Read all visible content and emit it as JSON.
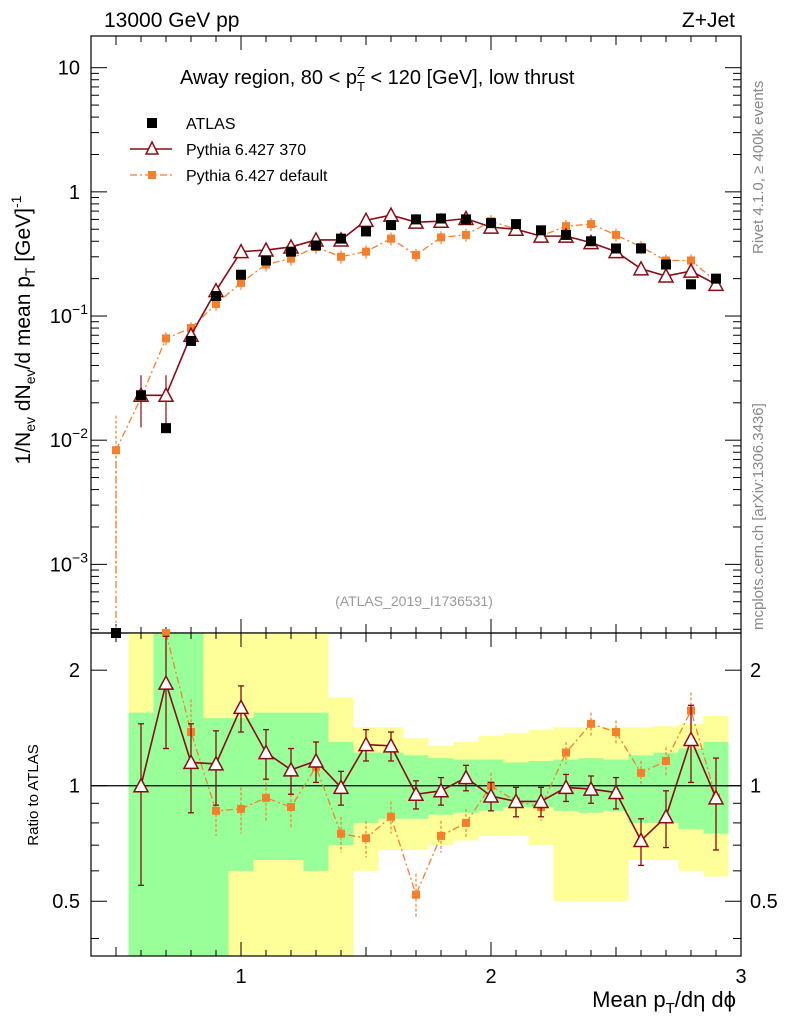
{
  "header": {
    "energy": "13000 GeV pp",
    "process": "Z+Jet"
  },
  "side_labels": {
    "rivet": "Rivet 4.1.0, ≥ 400k events",
    "mcplots": "mcplots.cern.ch [arXiv:1306.3436]"
  },
  "chart_data": [
    {
      "type": "scatter",
      "title": "Away region, 80 < pTZ < 120 [GeV], low thrust",
      "title_main": "Away region, 80 < p",
      "title_sup": "Z",
      "title_sub": "T",
      "title_rest": " < 120 [GeV], low thrust",
      "ylabel": "1/Nev dNev/d mean pT [GeV]^-1",
      "yscale": "log",
      "ylim": [
        0.00028,
        18
      ],
      "xlim": [
        0.4,
        3.0
      ],
      "y_ticks": [
        {
          "value": 10,
          "label": "10"
        },
        {
          "value": 1,
          "label": "1"
        },
        {
          "value": 0.1,
          "label": "10",
          "exp": "−1"
        },
        {
          "value": 0.01,
          "label": "10",
          "exp": "−2"
        },
        {
          "value": 0.001,
          "label": "10",
          "exp": "−3"
        }
      ],
      "watermark": "(ATLAS_2019_I1736531)",
      "legend": [
        {
          "name": "ATLAS",
          "marker": "square",
          "color": "#000000"
        },
        {
          "name": "Pythia 6.427 370",
          "marker": "triangle",
          "color": "#8b0b16"
        },
        {
          "name": "Pythia 6.427 default",
          "marker": "small-square",
          "color": "#f77f2c"
        }
      ],
      "x": [
        0.5,
        0.6,
        0.7,
        0.8,
        0.9,
        1.0,
        1.1,
        1.2,
        1.3,
        1.4,
        1.5,
        1.6,
        1.7,
        1.8,
        1.9,
        2.0,
        2.1,
        2.2,
        2.3,
        2.4,
        2.5,
        2.6,
        2.7,
        2.8,
        2.9
      ],
      "series": [
        {
          "name": "ATLAS",
          "values": [
            0.00025,
            0.023,
            0.0125,
            0.063,
            0.145,
            0.215,
            0.28,
            0.33,
            0.37,
            0.42,
            0.48,
            0.54,
            0.6,
            0.61,
            0.6,
            0.56,
            0.55,
            0.49,
            0.45,
            0.4,
            0.35,
            0.35,
            0.26,
            0.18,
            0.2
          ]
        },
        {
          "name": "Pythia 6.427 370",
          "x": [
            0.6,
            0.7,
            0.8,
            0.9,
            1.0,
            1.1,
            1.2,
            1.3,
            1.4,
            1.5,
            1.6,
            1.7,
            1.8,
            1.9,
            2.0,
            2.1,
            2.2,
            2.3,
            2.4,
            2.5,
            2.6,
            2.7,
            2.8,
            2.9
          ],
          "values": [
            0.023,
            0.023,
            0.07,
            0.16,
            0.33,
            0.34,
            0.36,
            0.41,
            0.41,
            0.59,
            0.65,
            0.57,
            0.58,
            0.61,
            0.52,
            0.5,
            0.44,
            0.44,
            0.39,
            0.33,
            0.24,
            0.21,
            0.23,
            0.18
          ]
        },
        {
          "name": "Pythia 6.427 default",
          "values": [
            0.0083,
            0.022,
            0.066,
            0.08,
            0.125,
            0.185,
            0.26,
            0.29,
            0.36,
            0.3,
            0.33,
            0.42,
            0.31,
            0.43,
            0.45,
            0.58,
            0.5,
            0.44,
            0.53,
            0.55,
            0.45,
            0.36,
            0.28,
            0.28,
            0.19
          ]
        }
      ]
    },
    {
      "type": "scatter",
      "ylabel": "Ratio to ATLAS",
      "yscale": "log",
      "ylim": [
        0.36,
        2.5
      ],
      "xlim": [
        0.4,
        3.0
      ],
      "xlabel": "Mean pT/dη dϕ",
      "y_ticks": [
        {
          "value": 2,
          "label": "2"
        },
        {
          "value": 1,
          "label": "1"
        },
        {
          "value": 0.5,
          "label": "0.5"
        }
      ],
      "x_ticks": [
        {
          "value": 1,
          "label": "1"
        },
        {
          "value": 2,
          "label": "2"
        },
        {
          "value": 3,
          "label": "3"
        }
      ],
      "bands": {
        "x_edges": [
          0.55,
          0.65,
          0.75,
          0.85,
          0.95,
          1.05,
          1.15,
          1.25,
          1.35,
          1.45,
          1.55,
          1.65,
          1.75,
          1.85,
          1.95,
          2.05,
          2.15,
          2.25,
          2.35,
          2.45,
          2.55,
          2.65,
          2.75,
          2.85,
          2.95
        ],
        "inner_lo": [
          0.36,
          0.36,
          0.36,
          0.36,
          0.6,
          0.64,
          0.64,
          0.6,
          0.7,
          0.8,
          0.82,
          0.82,
          0.84,
          0.85,
          0.86,
          0.88,
          0.88,
          0.86,
          0.85,
          0.86,
          0.8,
          0.8,
          0.77,
          0.75
        ],
        "inner_hi": [
          1.55,
          2.5,
          2.5,
          1.5,
          1.5,
          1.55,
          1.55,
          1.55,
          1.3,
          1.22,
          1.22,
          1.2,
          1.18,
          1.17,
          1.17,
          1.15,
          1.16,
          1.17,
          1.18,
          1.17,
          1.2,
          1.22,
          1.25,
          1.3
        ],
        "outer_lo": [
          0.36,
          0.36,
          0.36,
          0.36,
          0.36,
          0.36,
          0.36,
          0.36,
          0.36,
          0.6,
          0.68,
          0.68,
          0.7,
          0.72,
          0.74,
          0.74,
          0.7,
          0.5,
          0.5,
          0.5,
          0.64,
          0.64,
          0.6,
          0.58
        ],
        "outer_hi": [
          2.5,
          2.5,
          2.5,
          2.5,
          2.5,
          2.5,
          2.5,
          2.5,
          1.7,
          1.42,
          1.42,
          1.33,
          1.27,
          1.3,
          1.35,
          1.37,
          1.4,
          1.42,
          1.42,
          1.42,
          1.42,
          1.43,
          1.45,
          1.52
        ]
      },
      "series": [
        {
          "name": "Pythia 6.427 370",
          "x": [
            0.6,
            0.7,
            0.8,
            0.9,
            1.0,
            1.1,
            1.2,
            1.3,
            1.4,
            1.5,
            1.6,
            1.7,
            1.8,
            1.9,
            2.0,
            2.1,
            2.2,
            2.3,
            2.4,
            2.5,
            2.6,
            2.7,
            2.8,
            2.9
          ],
          "values": [
            1.0,
            1.85,
            1.15,
            1.14,
            1.6,
            1.22,
            1.1,
            1.16,
            0.99,
            1.28,
            1.27,
            0.95,
            0.97,
            1.05,
            0.94,
            0.91,
            0.91,
            0.99,
            0.98,
            0.96,
            0.72,
            0.83,
            1.32,
            0.93
          ],
          "err_lo": [
            0.45,
            0.6,
            0.3,
            0.25,
            0.22,
            0.18,
            0.15,
            0.14,
            0.1,
            0.12,
            0.11,
            0.08,
            0.08,
            0.08,
            0.08,
            0.08,
            0.08,
            0.08,
            0.08,
            0.09,
            0.1,
            0.14,
            0.3,
            0.25
          ],
          "err_hi": [
            0.45,
            0.6,
            0.3,
            0.25,
            0.22,
            0.18,
            0.15,
            0.14,
            0.1,
            0.12,
            0.11,
            0.08,
            0.08,
            0.08,
            0.08,
            0.08,
            0.08,
            0.08,
            0.08,
            0.09,
            0.1,
            0.14,
            0.3,
            0.25
          ]
        },
        {
          "name": "Pythia 6.427 default",
          "x": [
            0.7,
            0.8,
            0.9,
            1.0,
            1.1,
            1.2,
            1.3,
            1.4,
            1.5,
            1.6,
            1.7,
            1.8,
            1.9,
            2.0,
            2.1,
            2.2,
            2.3,
            2.4,
            2.5,
            2.6,
            2.7,
            2.8,
            2.9
          ],
          "values": [
            2.5,
            1.38,
            0.86,
            0.87,
            0.93,
            0.88,
            1.12,
            0.75,
            0.73,
            0.83,
            0.52,
            0.74,
            0.8,
            1.0,
            0.91,
            0.88,
            1.22,
            1.45,
            1.38,
            1.08,
            1.16,
            1.57,
            0.93
          ],
          "err_lo": [
            0.5,
            0.3,
            0.12,
            0.12,
            0.12,
            0.1,
            0.1,
            0.08,
            0.08,
            0.08,
            0.07,
            0.07,
            0.07,
            0.08,
            0.07,
            0.07,
            0.08,
            0.1,
            0.1,
            0.08,
            0.1,
            0.18,
            0.15
          ],
          "err_hi": [
            0.5,
            0.3,
            0.12,
            0.12,
            0.12,
            0.1,
            0.1,
            0.08,
            0.08,
            0.08,
            0.07,
            0.07,
            0.07,
            0.08,
            0.07,
            0.07,
            0.08,
            0.1,
            0.1,
            0.08,
            0.1,
            0.18,
            0.15
          ]
        }
      ]
    }
  ]
}
